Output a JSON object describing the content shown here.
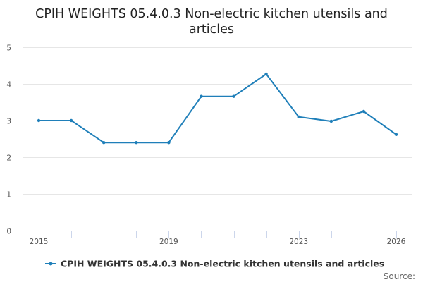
{
  "chart_data": {
    "type": "line",
    "title_lines": [
      "CPIH WEIGHTS 05.4.0.3 Non-electric kitchen utensils and",
      "articles"
    ],
    "series": [
      {
        "name": "CPIH WEIGHTS 05.4.0.3 Non-electric kitchen utensils and articles",
        "color": "#1f7fb9",
        "values": [
          3,
          3,
          2.4,
          2.4,
          2.4,
          3.66,
          3.66,
          4.27,
          3.1,
          2.98,
          3.25,
          2.62
        ]
      }
    ],
    "x": [
      2015,
      2016,
      2017,
      2018,
      2019,
      2020,
      2021,
      2022,
      2023,
      2024,
      2025,
      2026
    ],
    "x_tick_labels": [
      "2015",
      "2019",
      "2023",
      "2026"
    ],
    "y_ticks": [
      0,
      1,
      2,
      3,
      4,
      5
    ],
    "ylim": [
      0,
      5
    ],
    "grid": true,
    "legend_position": "bottom"
  },
  "credits": "Source:"
}
